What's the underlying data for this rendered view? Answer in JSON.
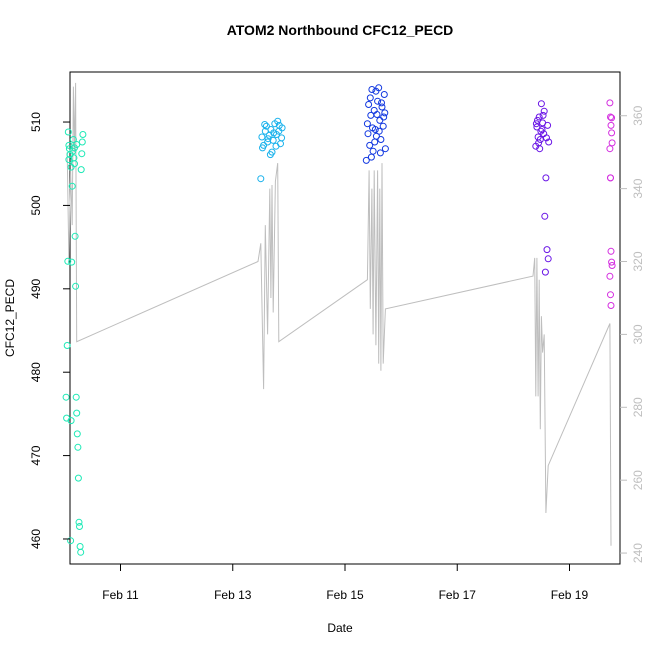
{
  "chart_data": {
    "type": "scatter",
    "title": "ATOM2 Northbound CFC12_PECD",
    "xlabel": "Date",
    "ylabel": "CFC12_PECD",
    "x_ticks": [
      "Feb 11",
      "Feb 13",
      "Feb 15",
      "Feb 17",
      "Feb 19"
    ],
    "x_tick_values": [
      11,
      13,
      15,
      17,
      19
    ],
    "xlim": [
      10.1,
      19.9
    ],
    "ylim": [
      457,
      516
    ],
    "y_ticks": [
      460,
      470,
      480,
      490,
      500,
      510
    ],
    "y2lim": [
      237,
      372
    ],
    "y2_ticks": [
      240,
      260,
      280,
      300,
      320,
      340,
      360
    ],
    "y2_color": "#bebebe",
    "line_color": "#bebebe",
    "series": [
      {
        "color": "#1de9b6",
        "points": [
          [
            10.03,
            477
          ],
          [
            10.04,
            474.5
          ],
          [
            10.05,
            483.2
          ],
          [
            10.06,
            493.3
          ],
          [
            10.07,
            508.8
          ],
          [
            10.08,
            507.2
          ],
          [
            10.09,
            506.8
          ],
          [
            10.1,
            506.1
          ],
          [
            10.11,
            459.8
          ],
          [
            10.12,
            474.2
          ],
          [
            10.13,
            493.2
          ],
          [
            10.14,
            502.3
          ],
          [
            10.15,
            506.5
          ],
          [
            10.16,
            507.9
          ],
          [
            10.17,
            505.7
          ],
          [
            10.18,
            505
          ],
          [
            10.19,
            496.3
          ],
          [
            10.2,
            490.3
          ],
          [
            10.21,
            477
          ],
          [
            10.22,
            475.1
          ],
          [
            10.23,
            472.6
          ],
          [
            10.24,
            471
          ],
          [
            10.25,
            467.3
          ],
          [
            10.26,
            462
          ],
          [
            10.27,
            461.5
          ],
          [
            10.28,
            459.1
          ],
          [
            10.29,
            458.4
          ],
          [
            10.3,
            504.3
          ],
          [
            10.31,
            506.2
          ],
          [
            10.32,
            507.6
          ],
          [
            10.33,
            508.5
          ],
          [
            10.08,
            505.5
          ],
          [
            10.12,
            504.6
          ],
          [
            10.18,
            506.9
          ],
          [
            10.22,
            507.3
          ]
        ]
      },
      {
        "color": "#1ab2ec",
        "points": [
          [
            13.5,
            503.2
          ],
          [
            13.52,
            508.2
          ],
          [
            13.55,
            507.2
          ],
          [
            13.58,
            508.9
          ],
          [
            13.6,
            509.5
          ],
          [
            13.62,
            507.6
          ],
          [
            13.65,
            508.4
          ],
          [
            13.68,
            509.1
          ],
          [
            13.7,
            506.4
          ],
          [
            13.72,
            507.8
          ],
          [
            13.75,
            509.8
          ],
          [
            13.78,
            508.5
          ],
          [
            13.8,
            510.1
          ],
          [
            13.82,
            508.9
          ],
          [
            13.85,
            507.4
          ],
          [
            13.88,
            509.3
          ],
          [
            13.53,
            506.9
          ],
          [
            13.57,
            509.7
          ],
          [
            13.63,
            508
          ],
          [
            13.67,
            506.1
          ],
          [
            13.73,
            508.7
          ],
          [
            13.77,
            507.1
          ],
          [
            13.83,
            509.6
          ],
          [
            13.87,
            508.1
          ]
        ]
      },
      {
        "color": "#1238e0",
        "points": [
          [
            15.38,
            505.4
          ],
          [
            15.4,
            509.8
          ],
          [
            15.42,
            512.1
          ],
          [
            15.44,
            507.2
          ],
          [
            15.46,
            510.8
          ],
          [
            15.48,
            513.9
          ],
          [
            15.5,
            506.5
          ],
          [
            15.52,
            511.4
          ],
          [
            15.54,
            509.1
          ],
          [
            15.56,
            508.3
          ],
          [
            15.58,
            512.5
          ],
          [
            15.6,
            514.1
          ],
          [
            15.62,
            510.2
          ],
          [
            15.64,
            507.9
          ],
          [
            15.66,
            511.8
          ],
          [
            15.68,
            509.5
          ],
          [
            15.7,
            513.3
          ],
          [
            15.72,
            506.8
          ],
          [
            15.41,
            508.6
          ],
          [
            15.45,
            512.9
          ],
          [
            15.49,
            509.3
          ],
          [
            15.53,
            507.6
          ],
          [
            15.57,
            510.9
          ],
          [
            15.61,
            508.9
          ],
          [
            15.65,
            512.3
          ],
          [
            15.69,
            510.6
          ],
          [
            15.47,
            505.8
          ],
          [
            15.55,
            513.7
          ],
          [
            15.63,
            506.3
          ],
          [
            15.71,
            511.1
          ]
        ]
      },
      {
        "color": "#6a15e6",
        "points": [
          [
            18.4,
            507.1
          ],
          [
            18.42,
            509.4
          ],
          [
            18.44,
            508.2
          ],
          [
            18.46,
            510.6
          ],
          [
            18.48,
            507.9
          ],
          [
            18.5,
            512.2
          ],
          [
            18.52,
            509.9
          ],
          [
            18.54,
            508.6
          ],
          [
            18.56,
            498.7
          ],
          [
            18.58,
            503.3
          ],
          [
            18.6,
            494.7
          ],
          [
            18.62,
            493.6
          ],
          [
            18.57,
            492
          ],
          [
            18.43,
            510.2
          ],
          [
            18.47,
            506.8
          ],
          [
            18.51,
            509.1
          ],
          [
            18.55,
            511.3
          ],
          [
            18.59,
            508.1
          ],
          [
            18.45,
            507.5
          ],
          [
            18.53,
            510.8
          ],
          [
            18.61,
            509.6
          ],
          [
            18.63,
            507.6
          ],
          [
            18.49,
            508.9
          ],
          [
            18.41,
            509.8
          ]
        ]
      },
      {
        "color": "#d42ee0",
        "points": [
          [
            19.72,
            512.3
          ],
          [
            19.73,
            510.6
          ],
          [
            19.74,
            509.6
          ],
          [
            19.75,
            508.7
          ],
          [
            19.76,
            507.5
          ],
          [
            19.72,
            506.8
          ],
          [
            19.73,
            503.3
          ],
          [
            19.74,
            494.5
          ],
          [
            19.75,
            493.2
          ],
          [
            19.76,
            492.8
          ],
          [
            19.72,
            491.5
          ],
          [
            19.73,
            489.3
          ],
          [
            19.74,
            488
          ],
          [
            19.75,
            510.5
          ],
          [
            19.73,
            503.3
          ]
        ]
      }
    ],
    "line_series": {
      "points": [
        [
          10.05,
          350
        ],
        [
          10.08,
          320
        ],
        [
          10.11,
          345
        ],
        [
          10.14,
          330
        ],
        [
          10.16,
          368
        ],
        [
          10.18,
          350
        ],
        [
          10.2,
          369
        ],
        [
          10.22,
          298
        ],
        [
          13.45,
          320
        ],
        [
          13.5,
          325
        ],
        [
          13.55,
          285
        ],
        [
          13.58,
          330
        ],
        [
          13.62,
          300
        ],
        [
          13.66,
          340
        ],
        [
          13.68,
          310
        ],
        [
          13.7,
          341
        ],
        [
          13.72,
          306
        ],
        [
          13.76,
          342
        ],
        [
          13.8,
          347
        ],
        [
          13.82,
          298
        ],
        [
          15.4,
          315
        ],
        [
          15.43,
          345
        ],
        [
          15.45,
          307
        ],
        [
          15.48,
          340
        ],
        [
          15.5,
          300
        ],
        [
          15.52,
          345
        ],
        [
          15.55,
          297
        ],
        [
          15.58,
          345
        ],
        [
          15.6,
          292
        ],
        [
          15.62,
          340
        ],
        [
          15.64,
          290
        ],
        [
          15.66,
          347
        ],
        [
          15.68,
          292
        ],
        [
          15.72,
          307
        ],
        [
          18.35,
          316
        ],
        [
          18.38,
          321
        ],
        [
          18.4,
          283
        ],
        [
          18.42,
          321
        ],
        [
          18.44,
          283
        ],
        [
          18.46,
          315
        ],
        [
          18.48,
          274
        ],
        [
          18.5,
          305
        ],
        [
          18.52,
          295
        ],
        [
          18.55,
          300
        ],
        [
          18.58,
          251
        ],
        [
          18.62,
          264
        ],
        [
          19.72,
          303
        ],
        [
          19.74,
          242
        ]
      ]
    }
  }
}
